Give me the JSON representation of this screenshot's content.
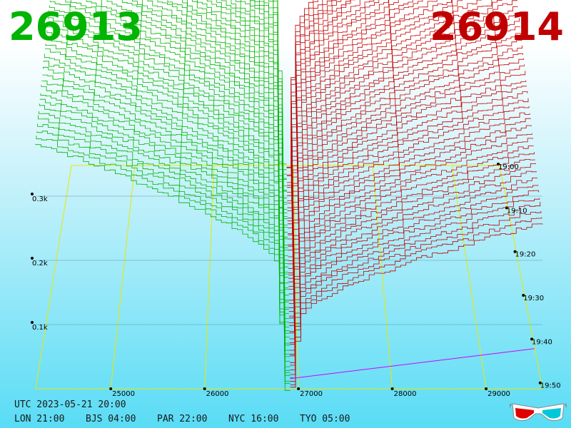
{
  "header": {
    "bid_price": "26913",
    "ask_price": "26914"
  },
  "colors": {
    "bid": "#00b400",
    "ask": "#c00000",
    "grid": "#e8e800",
    "base_line": "#d000ff"
  },
  "chart_data": {
    "type": "3d-depth-waterfall",
    "x_ticks": [
      "25000",
      "26000",
      "27000",
      "28000",
      "29000"
    ],
    "x_tick_values": [
      25000,
      26000,
      27000,
      28000,
      29000
    ],
    "x_range": [
      24200,
      29600
    ],
    "mid_price": 26913.5,
    "z_ticks": [
      "0.1k",
      "0.2k",
      "0.3k"
    ],
    "z_tick_values": [
      100,
      200,
      300
    ],
    "time_ticks": [
      "19:00",
      "19:10",
      "19:20",
      "19:30",
      "19:40",
      "19:50"
    ],
    "time_range_minutes": [
      0,
      60
    ],
    "series": [
      {
        "name": "bids",
        "side": "bid",
        "approx_cumulative_depth_range": [
          0,
          540
        ]
      },
      {
        "name": "asks",
        "side": "ask",
        "approx_cumulative_depth_range": [
          0,
          450
        ]
      }
    ],
    "grid": true
  },
  "footer": {
    "utc": "UTC 2023-05-21 20:00",
    "timezones": [
      {
        "label": "LON 21:00"
      },
      {
        "label": "BJS 04:00"
      },
      {
        "label": "PAR 22:00"
      },
      {
        "label": "NYC 16:00"
      },
      {
        "label": "TYO 05:00"
      }
    ]
  },
  "icons": {
    "stereo_glasses": "3d-glasses-icon"
  }
}
